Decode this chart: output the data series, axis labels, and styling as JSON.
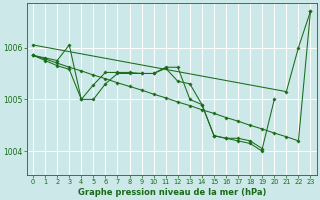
{
  "bg_color": "#cce8e8",
  "grid_color": "#ffffff",
  "line_color": "#1a6b1a",
  "xlabel": "Graphe pression niveau de la mer (hPa)",
  "ylim": [
    1003.55,
    1006.85
  ],
  "xlim": [
    -0.5,
    23.5
  ],
  "yticks": [
    1004,
    1005,
    1006
  ],
  "xticks": [
    0,
    1,
    2,
    3,
    4,
    5,
    6,
    7,
    8,
    9,
    10,
    11,
    12,
    13,
    14,
    15,
    16,
    17,
    18,
    19,
    20,
    21,
    22,
    23
  ],
  "series": [
    {
      "x": [
        0,
        1,
        2,
        3,
        4,
        5,
        6,
        7,
        8,
        9,
        10,
        11,
        12,
        13,
        14,
        15,
        16,
        17,
        18,
        19,
        20,
        21,
        22,
        23
      ],
      "y": [
        1005.85,
        1005.78,
        1005.7,
        1005.62,
        1005.55,
        1005.47,
        1005.4,
        1005.32,
        1005.25,
        1005.18,
        1005.1,
        1005.03,
        1004.95,
        1004.88,
        1004.8,
        1004.73,
        1004.65,
        1004.58,
        1004.5,
        1004.43,
        1004.35,
        1004.28,
        1004.2,
        1006.7
      ]
    },
    {
      "x": [
        0,
        1,
        2,
        3,
        4,
        5,
        6,
        7,
        8,
        9,
        10,
        11,
        12,
        13,
        14,
        15,
        16,
        17,
        18,
        19,
        20,
        21,
        22,
        23
      ],
      "y": [
        1006.05,
        null,
        null,
        null,
        null,
        null,
        null,
        null,
        null,
        null,
        null,
        null,
        null,
        null,
        null,
        null,
        null,
        null,
        null,
        null,
        null,
        1005.15,
        1006.0,
        1006.7
      ]
    },
    {
      "x": [
        0,
        1,
        2,
        3,
        4,
        5,
        6,
        7,
        8,
        9,
        10,
        11,
        12,
        13,
        14,
        15,
        16,
        17,
        18,
        19,
        20,
        21,
        22,
        23
      ],
      "y": [
        1005.85,
        1005.8,
        1005.75,
        1006.05,
        1005.0,
        1005.0,
        1005.3,
        1005.5,
        1005.5,
        1005.5,
        1005.5,
        1005.6,
        1005.35,
        1005.3,
        1004.9,
        1004.3,
        1004.25,
        1004.25,
        1004.2,
        1004.05,
        1005.0,
        null,
        null,
        null
      ]
    },
    {
      "x": [
        0,
        1,
        2,
        3,
        4,
        5,
        6,
        7,
        8,
        9,
        10,
        11,
        12,
        13,
        14,
        15,
        16,
        17,
        18,
        19,
        20
      ],
      "y": [
        1005.85,
        1005.75,
        1005.65,
        1005.58,
        1005.0,
        1005.28,
        1005.52,
        1005.52,
        1005.52,
        1005.5,
        1005.5,
        1005.62,
        1005.62,
        1005.0,
        1004.9,
        1004.3,
        1004.25,
        1004.2,
        1004.15,
        1004.0,
        null
      ]
    }
  ]
}
